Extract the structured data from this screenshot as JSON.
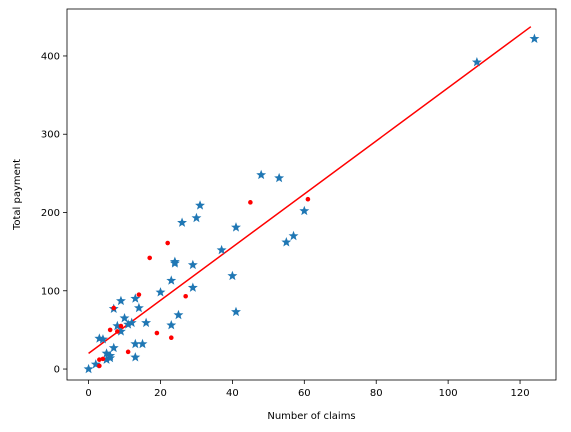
{
  "chart_data": {
    "type": "scatter",
    "title": "",
    "xlabel": "Number of claims",
    "ylabel": "Total payment",
    "xlim": [
      -6,
      130
    ],
    "ylim": [
      -14,
      460
    ],
    "x_ticks": [
      0,
      20,
      40,
      60,
      80,
      100,
      120
    ],
    "y_ticks": [
      0,
      100,
      200,
      300,
      400
    ],
    "grid": false,
    "legend": "none",
    "series": [
      {
        "marker": "star",
        "color": "#1f77b4",
        "points": [
          [
            0,
            0
          ],
          [
            2,
            6
          ],
          [
            3,
            39
          ],
          [
            4,
            38
          ],
          [
            5,
            20
          ],
          [
            5,
            12
          ],
          [
            6,
            14
          ],
          [
            6,
            17
          ],
          [
            7,
            27
          ],
          [
            7,
            77
          ],
          [
            8,
            55
          ],
          [
            9,
            87
          ],
          [
            9,
            48
          ],
          [
            10,
            65
          ],
          [
            11,
            57
          ],
          [
            12,
            59
          ],
          [
            13,
            90
          ],
          [
            13,
            15
          ],
          [
            13,
            32
          ],
          [
            14,
            78
          ],
          [
            15,
            32
          ],
          [
            16,
            59
          ],
          [
            20,
            98
          ],
          [
            23,
            56
          ],
          [
            23,
            113
          ],
          [
            24,
            135
          ],
          [
            24,
            137
          ],
          [
            25,
            69
          ],
          [
            26,
            187
          ],
          [
            29,
            133
          ],
          [
            29,
            104
          ],
          [
            30,
            193
          ],
          [
            31,
            209
          ],
          [
            37,
            152
          ],
          [
            40,
            119
          ],
          [
            41,
            181
          ],
          [
            41,
            73
          ],
          [
            48,
            248
          ],
          [
            53,
            244
          ],
          [
            55,
            162
          ],
          [
            57,
            170
          ],
          [
            60,
            202
          ],
          [
            108,
            392
          ],
          [
            124,
            422
          ]
        ]
      },
      {
        "marker": "dot",
        "color": "#ff0000",
        "points": [
          [
            3,
            4
          ],
          [
            3,
            12
          ],
          [
            4,
            13
          ],
          [
            6,
            50
          ],
          [
            7,
            78
          ],
          [
            8,
            48
          ],
          [
            9,
            55
          ],
          [
            11,
            22
          ],
          [
            14,
            95
          ],
          [
            17,
            142
          ],
          [
            19,
            46
          ],
          [
            22,
            161
          ],
          [
            23,
            40
          ],
          [
            27,
            93
          ],
          [
            45,
            213
          ],
          [
            61,
            217
          ]
        ]
      }
    ],
    "fit_line": {
      "color": "#ff0000",
      "points": [
        [
          0,
          19.99
        ],
        [
          123,
          437.4
        ]
      ]
    }
  }
}
